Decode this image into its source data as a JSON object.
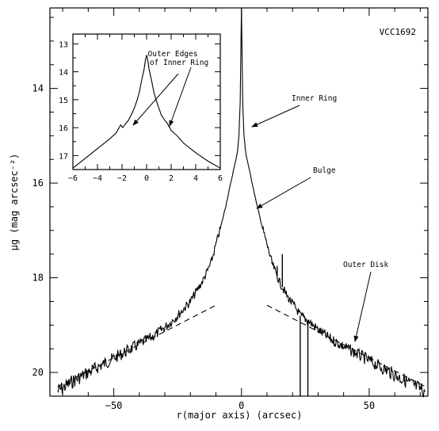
{
  "chart_data": [
    {
      "type": "line",
      "title": "VCC1692",
      "xlabel": "r(major axis) (arcsec)",
      "ylabel": "μ_g (mag arcsec⁻²)",
      "xlim": [
        -75,
        73
      ],
      "ylim": [
        20.5,
        12.3
      ],
      "y_inverted": true,
      "xticks": [
        -50,
        0,
        50
      ],
      "yticks": [
        14,
        16,
        18,
        20
      ],
      "grid": false,
      "series": [
        {
          "style": "solid-noisy",
          "x": [
            -72,
            -65,
            -60,
            -55,
            -50,
            -45,
            -40,
            -35,
            -30,
            -25,
            -20,
            -15,
            -12,
            -10,
            -8,
            -6,
            -5,
            -4,
            -3,
            -2,
            -1.5,
            -1,
            -0.5,
            0,
            0.5,
            1,
            1.5,
            2,
            3,
            4,
            5,
            6,
            8,
            10,
            12,
            15,
            18,
            20,
            22,
            23,
            26,
            30,
            35,
            40,
            45,
            50,
            55,
            60,
            65,
            70,
            72
          ],
          "y": [
            20.4,
            20.15,
            20.0,
            19.85,
            19.7,
            19.55,
            19.4,
            19.25,
            19.05,
            18.8,
            18.5,
            18.05,
            17.7,
            17.3,
            16.9,
            16.45,
            16.2,
            15.95,
            15.7,
            15.45,
            15.3,
            15.0,
            14.3,
            12.3,
            14.3,
            15.0,
            15.3,
            15.45,
            15.7,
            15.95,
            16.2,
            16.45,
            16.9,
            17.3,
            17.7,
            18.1,
            18.4,
            18.55,
            18.7,
            18.8,
            18.9,
            19.1,
            19.3,
            19.45,
            19.6,
            19.75,
            19.9,
            20.05,
            20.2,
            20.35,
            20.4
          ]
        },
        {
          "style": "dashed",
          "x": [
            -72,
            -10
          ],
          "y": [
            20.3,
            18.58
          ]
        },
        {
          "style": "dashed",
          "x": [
            10,
            72
          ],
          "y": [
            18.58,
            20.3
          ]
        }
      ],
      "spikes": [
        {
          "x": 12,
          "y_top": 17.65
        },
        {
          "x": 14,
          "y_top": 17.75
        },
        {
          "x": 16,
          "y_top": 17.5
        },
        {
          "x": 23,
          "y_top": 20.5
        },
        {
          "x": 26,
          "y_top": 20.5
        }
      ],
      "annotations": [
        {
          "text": "Inner Ring",
          "x": 1,
          "y": 14.9
        },
        {
          "text": "Bulge",
          "x": 2.5,
          "y": 16.7
        },
        {
          "text": "Outer Disk",
          "x": 45,
          "y": 19.3
        }
      ]
    },
    {
      "type": "line",
      "title": "",
      "xlim": [
        -6,
        6
      ],
      "ylim": [
        17.5,
        12.65
      ],
      "y_inverted": true,
      "xticks": [
        -6,
        -4,
        -2,
        0,
        2,
        4,
        6
      ],
      "yticks": [
        13,
        14,
        15,
        16,
        17
      ],
      "series": [
        {
          "style": "solid",
          "x": [
            -6,
            -5,
            -4,
            -3,
            -2.5,
            -2.1,
            -1.95,
            -1.7,
            -1.5,
            -1.2,
            -1.0,
            -0.8,
            -0.6,
            -0.4,
            -0.2,
            -0.1,
            0,
            0.1,
            0.2,
            0.4,
            0.6,
            0.8,
            1.0,
            1.2,
            1.5,
            1.7,
            1.8,
            1.9,
            2.0,
            2.5,
            3,
            4,
            5,
            6
          ],
          "y": [
            17.45,
            17.1,
            16.75,
            16.4,
            16.2,
            15.9,
            16.0,
            15.85,
            15.75,
            15.5,
            15.3,
            15.05,
            14.75,
            14.3,
            13.9,
            13.6,
            13.4,
            13.6,
            13.9,
            14.3,
            14.75,
            15.05,
            15.3,
            15.55,
            15.75,
            15.85,
            15.95,
            16.0,
            16.1,
            16.3,
            16.55,
            16.9,
            17.2,
            17.45
          ]
        }
      ],
      "annotations": [
        {
          "text": "Outer Edges\nof Inner Ring",
          "x": 0.3,
          "y": 13.8
        }
      ]
    }
  ],
  "labels": {
    "galaxy": "VCC1692",
    "xlabel": "r(major axis) (arcsec)",
    "ylabel": "μg (mag arcsec⁻²)",
    "inner_ring": "Inner Ring",
    "bulge": "Bulge",
    "outer_disk": "Outer Disk",
    "outer_edges_line1": "Outer Edges",
    "outer_edges_line2": "of Inner Ring"
  }
}
